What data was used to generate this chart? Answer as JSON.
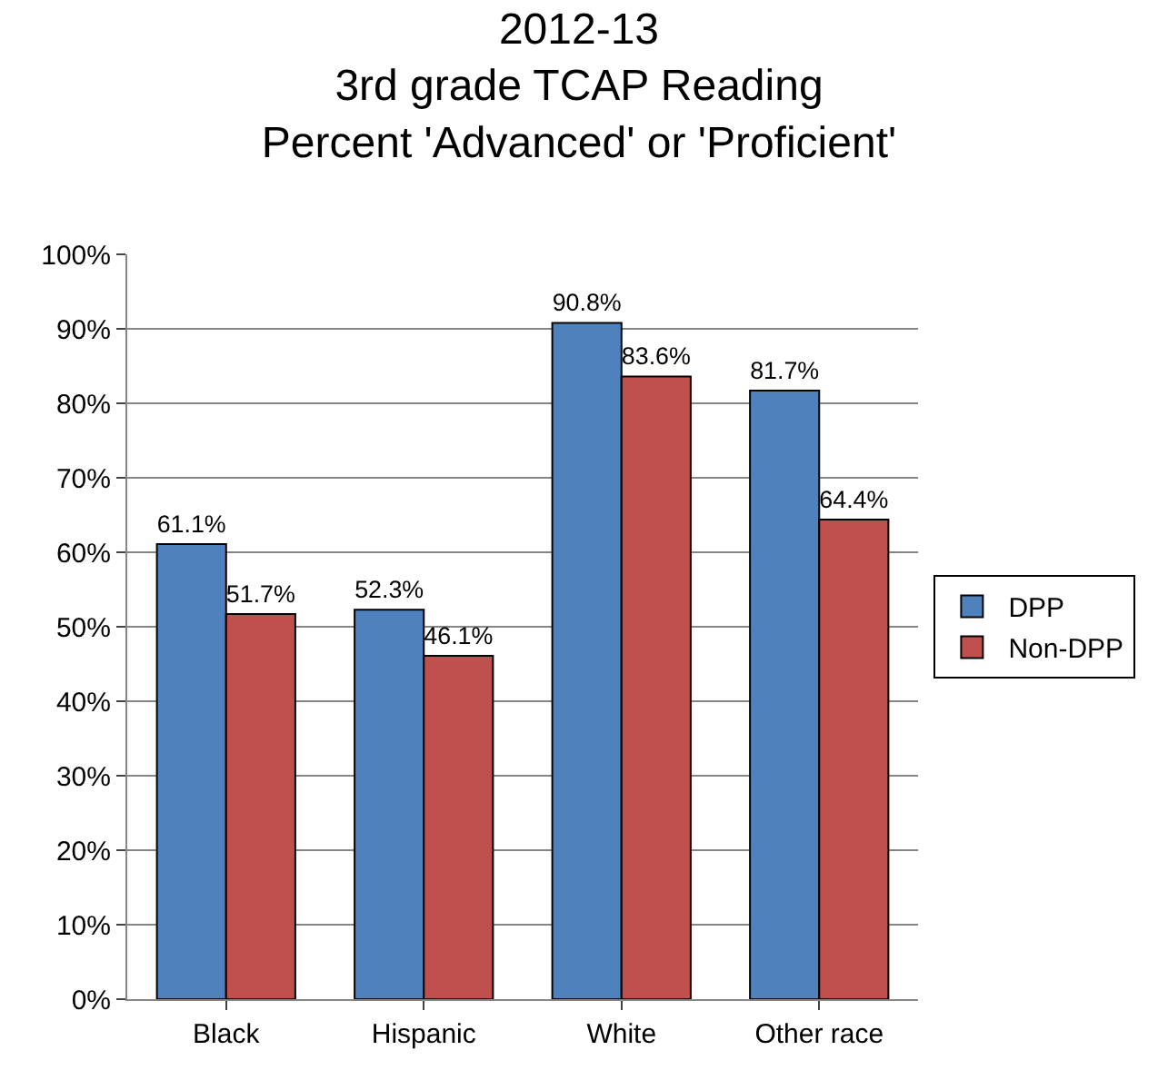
{
  "chart_data": {
    "type": "bar",
    "title": "2012-13\n3rd grade TCAP Reading\nPercent 'Advanced' or 'Proficient'",
    "categories": [
      "Black",
      "Hispanic",
      "White",
      "Other race"
    ],
    "series": [
      {
        "name": "DPP",
        "color": "#4f81bd",
        "values": [
          61.1,
          52.3,
          90.8,
          81.7
        ],
        "value_labels": [
          "61.1%",
          "52.3%",
          "90.8%",
          "81.7%"
        ]
      },
      {
        "name": "Non-DPP",
        "color": "#c0504d",
        "values": [
          51.7,
          46.1,
          83.6,
          64.4
        ],
        "value_labels": [
          "51.7%",
          "46.1%",
          "83.6%",
          "64.4%"
        ]
      }
    ],
    "ylim": [
      0,
      100
    ],
    "yticks": [
      {
        "value": 0,
        "label": "0%"
      },
      {
        "value": 10,
        "label": "10%"
      },
      {
        "value": 20,
        "label": "20%"
      },
      {
        "value": 30,
        "label": "30%"
      },
      {
        "value": 40,
        "label": "40%"
      },
      {
        "value": 50,
        "label": "50%"
      },
      {
        "value": 60,
        "label": "60%"
      },
      {
        "value": 70,
        "label": "70%"
      },
      {
        "value": 80,
        "label": "80%"
      },
      {
        "value": 90,
        "label": "90%"
      },
      {
        "value": 100,
        "label": "100%"
      }
    ],
    "grid": "y",
    "legend": "right"
  }
}
